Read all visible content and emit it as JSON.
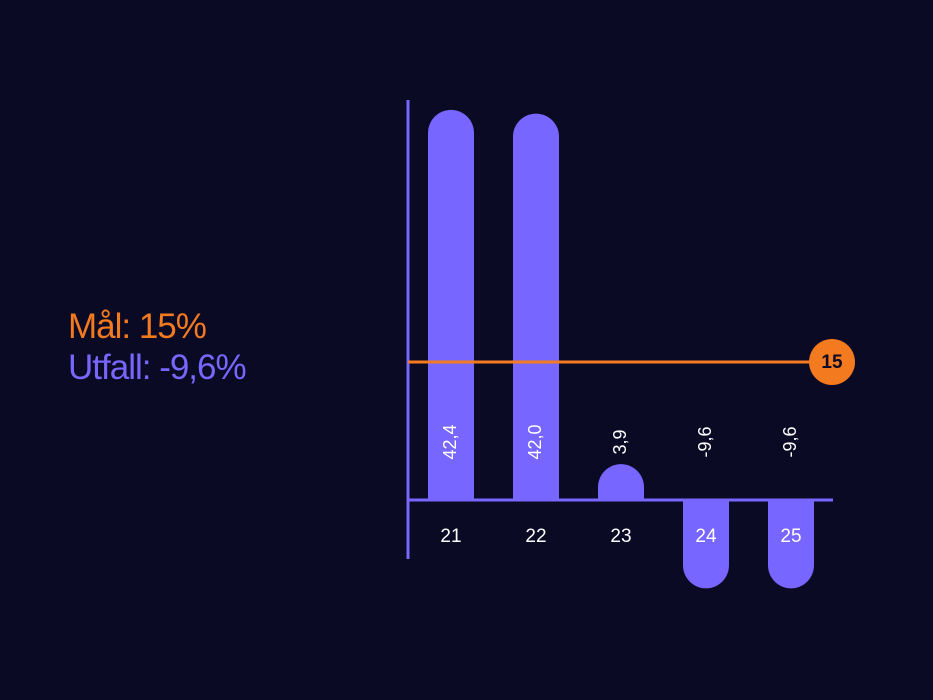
{
  "legend": {
    "target_label": "Mål: 15%",
    "actual_label": "Utfall: -9,6%"
  },
  "colors": {
    "background": "#0b0a24",
    "bar": "#7766ff",
    "axis": "#7766ff",
    "target": "#f47a20",
    "label": "#ffffff",
    "badge_text": "#0b0a24"
  },
  "chart_data": {
    "type": "bar",
    "title": "",
    "xlabel": "",
    "ylabel": "",
    "categories": [
      "21",
      "22",
      "23",
      "24",
      "25"
    ],
    "values": [
      42.4,
      42.0,
      3.9,
      -9.6,
      -9.6
    ],
    "value_labels": [
      "42,4",
      "42,0",
      "3,9",
      "-9,6",
      "-9,6"
    ],
    "target": {
      "value": 15,
      "label": "15"
    },
    "ylim": [
      -15,
      45
    ],
    "grid": false
  }
}
